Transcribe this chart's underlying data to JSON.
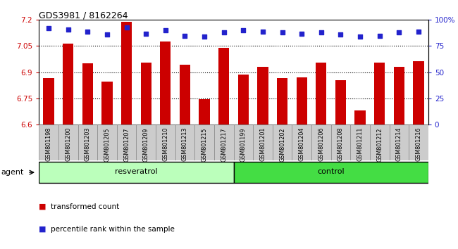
{
  "title": "GDS3981 / 8162264",
  "categories": [
    "GSM801198",
    "GSM801200",
    "GSM801203",
    "GSM801205",
    "GSM801207",
    "GSM801209",
    "GSM801210",
    "GSM801213",
    "GSM801215",
    "GSM801217",
    "GSM801199",
    "GSM801201",
    "GSM801202",
    "GSM801204",
    "GSM801206",
    "GSM801208",
    "GSM801211",
    "GSM801212",
    "GSM801214",
    "GSM801216"
  ],
  "bar_values": [
    6.865,
    7.065,
    6.95,
    6.845,
    7.19,
    6.955,
    7.075,
    6.945,
    6.745,
    7.04,
    6.885,
    6.93,
    6.865,
    6.87,
    6.955,
    6.855,
    6.68,
    6.955,
    6.93,
    6.965
  ],
  "percentile_values": [
    92,
    91,
    89,
    86,
    93,
    87,
    90,
    85,
    84,
    88,
    90,
    89,
    88,
    87,
    88,
    86,
    84,
    85,
    88,
    89
  ],
  "bar_color": "#cc0000",
  "percentile_color": "#2222cc",
  "ylim": [
    6.6,
    7.2
  ],
  "right_ylim": [
    0,
    100
  ],
  "yticks_left": [
    6.6,
    6.75,
    6.9,
    7.05,
    7.2
  ],
  "yticks_right": [
    0,
    25,
    50,
    75,
    100
  ],
  "ytick_labels_right": [
    "0",
    "25",
    "50",
    "75",
    "100%"
  ],
  "gridlines": [
    6.75,
    6.9,
    7.05
  ],
  "group1_label": "resveratrol",
  "group2_label": "control",
  "group1_count": 10,
  "group2_count": 10,
  "group1_color": "#bbffbb",
  "group2_color": "#44dd44",
  "tickbox_color": "#cccccc",
  "tickbox_edge": "#888888",
  "xlabel_agent": "agent",
  "legend1": "transformed count",
  "legend2": "percentile rank within the sample",
  "fig_bg": "#ffffff"
}
